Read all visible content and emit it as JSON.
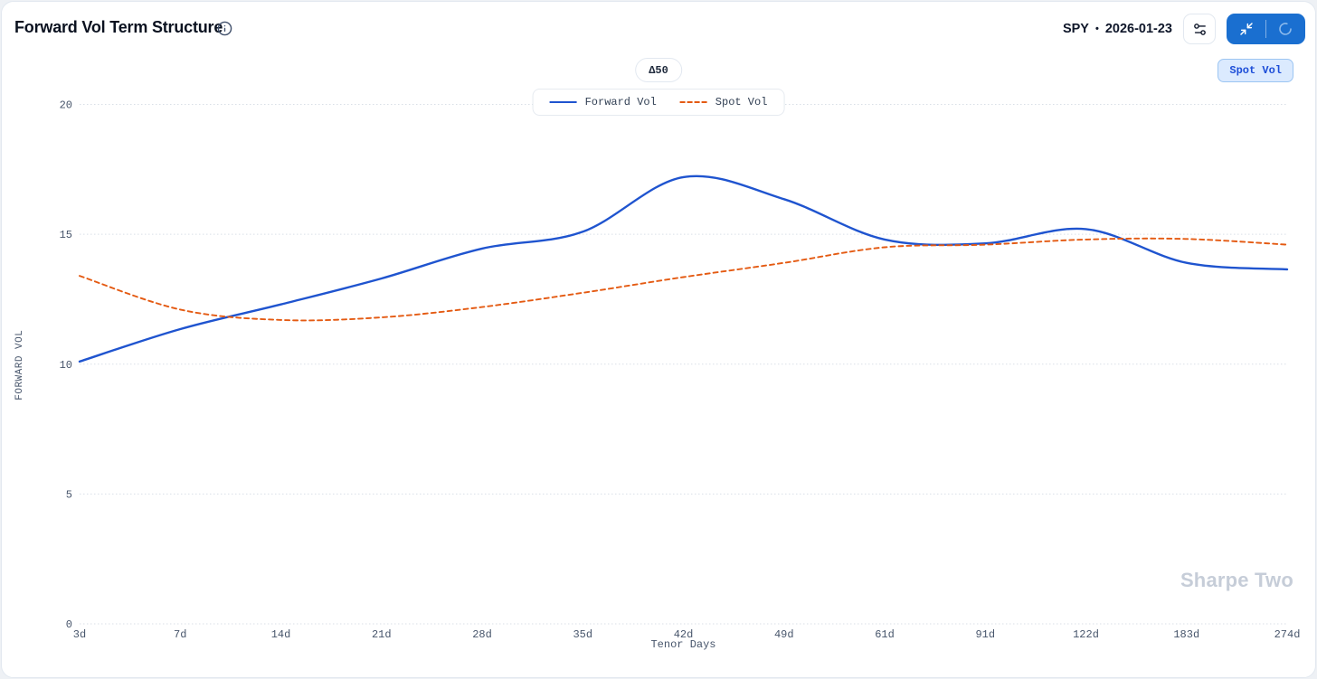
{
  "header": {
    "title": "Forward Vol Term Structure",
    "ticker": "SPY",
    "separator": "•",
    "date": "2026-01-23"
  },
  "toolbar": {
    "delta_badge": "Δ50",
    "spot_vol_toggle": "Spot Vol"
  },
  "watermark": "Sharpe Two",
  "colors": {
    "forward_vol_line": "#1f54cf",
    "spot_vol_line": "#e45a12",
    "blue_button": "#1a6fd0",
    "spot_toggle_bg": "#dbeafe",
    "spot_toggle_text": "#1d4ed8",
    "axis_text": "#47556b",
    "gridline": "#d9dfe7"
  },
  "chart_data": {
    "type": "line",
    "categories": [
      "3d",
      "7d",
      "14d",
      "21d",
      "28d",
      "35d",
      "42d",
      "49d",
      "61d",
      "91d",
      "122d",
      "183d",
      "274d"
    ],
    "series": [
      {
        "name": "Forward Vol",
        "color": "#1f54cf",
        "style": "solid",
        "values": [
          10.1,
          11.35,
          12.3,
          13.3,
          14.45,
          15.1,
          17.2,
          16.35,
          14.8,
          14.65,
          15.2,
          13.9,
          13.65
        ]
      },
      {
        "name": "Spot Vol",
        "color": "#e45a12",
        "style": "dashed",
        "values": [
          13.4,
          12.1,
          11.7,
          11.8,
          12.2,
          12.75,
          13.35,
          13.9,
          14.5,
          14.6,
          14.8,
          14.82,
          14.6
        ]
      }
    ],
    "xlabel": "Tenor Days",
    "ylabel": "FORWARD VOL",
    "yticks": [
      0,
      5,
      10,
      15,
      20
    ],
    "ylim": [
      0,
      20
    ],
    "grid": "horizontal-dotted",
    "legend_position": "top-center"
  }
}
